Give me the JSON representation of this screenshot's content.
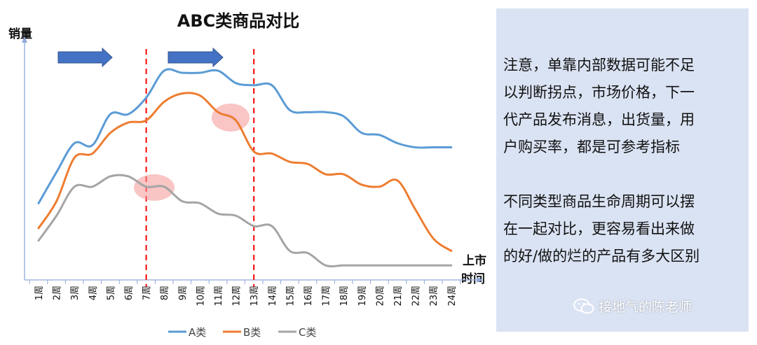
{
  "chart_data": {
    "type": "line",
    "title": "ABC类商品对比",
    "ylabel": "销量",
    "xlabel": "上市时间",
    "ylim": [
      0,
      100
    ],
    "categories": [
      "1周",
      "2周",
      "3周",
      "4周",
      "5周",
      "6周",
      "7周",
      "8周",
      "9周",
      "10周",
      "11周",
      "12周",
      "13周",
      "14周",
      "15周",
      "16周",
      "17周",
      "18周",
      "19周",
      "20周",
      "21周",
      "22周",
      "23周",
      "24周"
    ],
    "series": [
      {
        "name": "A类",
        "color": "#5b9bd5",
        "values": [
          37,
          52,
          66,
          65,
          80,
          80,
          88,
          101,
          100,
          100,
          101,
          95,
          94,
          94,
          82,
          81,
          81,
          79,
          71,
          70,
          66,
          64,
          64,
          64
        ]
      },
      {
        "name": "B类",
        "color": "#ed7d31",
        "values": [
          25,
          38,
          59,
          61,
          71,
          76,
          77,
          86,
          90,
          89,
          81,
          77,
          62,
          61,
          57,
          56,
          51,
          51,
          46,
          45,
          48,
          34,
          20,
          14
        ]
      },
      {
        "name": "C类",
        "color": "#a5a5a5",
        "values": [
          19,
          31,
          45,
          45,
          50,
          50,
          45,
          45,
          38,
          37,
          32,
          31,
          26,
          26,
          14,
          13,
          7,
          7,
          7,
          7,
          7,
          7,
          7,
          7
        ]
      }
    ],
    "legend_position": "bottom",
    "grid": false
  },
  "annotations": {
    "vertical_markers_after_week": [
      6.5,
      12.5
    ],
    "arrows": 2,
    "highlight_circles": 2
  },
  "note": {
    "paragraph1": [
      "注意，单靠内部数据可能不足",
      "以判断拐点，市场价格，下一",
      "代产品发布消息，出货量，用",
      "户购买率，都是可参考指标"
    ],
    "paragraph2": [
      "不同类型商品生命周期可以摆",
      "在一起对比，更容易看出来做",
      "的好/做的烂的产品有多大区别"
    ]
  },
  "watermark": {
    "text": "接地气的陈老师",
    "icon": "wechat-icon"
  }
}
